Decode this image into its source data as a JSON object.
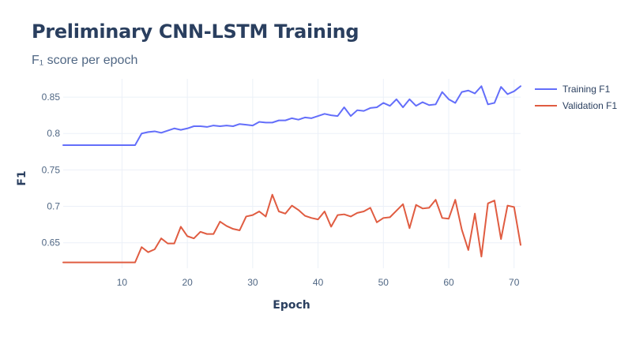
{
  "chart_data": {
    "type": "line",
    "title": "Preliminary CNN-LSTM Training",
    "subtitle": "F₁ score per epoch",
    "xlabel": "Epoch",
    "ylabel": "F1",
    "xlim": [
      1,
      71
    ],
    "ylim": [
      0.615,
      0.875
    ],
    "xticks": [
      10,
      20,
      30,
      40,
      50,
      60,
      70
    ],
    "yticks": [
      0.65,
      0.7,
      0.75,
      0.8,
      0.85
    ],
    "ytick_labels": [
      "0.65",
      "0.7",
      "0.75",
      "0.8",
      "0.85"
    ],
    "grid": true,
    "legend_position": "top-right",
    "x": [
      1,
      2,
      3,
      4,
      5,
      6,
      7,
      8,
      9,
      10,
      11,
      12,
      13,
      14,
      15,
      16,
      17,
      18,
      19,
      20,
      21,
      22,
      23,
      24,
      25,
      26,
      27,
      28,
      29,
      30,
      31,
      32,
      33,
      34,
      35,
      36,
      37,
      38,
      39,
      40,
      41,
      42,
      43,
      44,
      45,
      46,
      47,
      48,
      49,
      50,
      51,
      52,
      53,
      54,
      55,
      56,
      57,
      58,
      59,
      60,
      61,
      62,
      63,
      64,
      65,
      66,
      67,
      68,
      69,
      70,
      71
    ],
    "series": [
      {
        "name": "Training F1",
        "color": "#636efa",
        "values": [
          0.784,
          0.784,
          0.784,
          0.784,
          0.784,
          0.784,
          0.784,
          0.784,
          0.784,
          0.784,
          0.784,
          0.784,
          0.8,
          0.802,
          0.803,
          0.801,
          0.804,
          0.807,
          0.805,
          0.807,
          0.81,
          0.81,
          0.809,
          0.811,
          0.81,
          0.811,
          0.81,
          0.813,
          0.812,
          0.811,
          0.816,
          0.815,
          0.815,
          0.818,
          0.818,
          0.821,
          0.819,
          0.822,
          0.821,
          0.824,
          0.827,
          0.825,
          0.824,
          0.836,
          0.824,
          0.832,
          0.831,
          0.835,
          0.836,
          0.842,
          0.838,
          0.847,
          0.836,
          0.847,
          0.838,
          0.843,
          0.839,
          0.84,
          0.857,
          0.847,
          0.842,
          0.857,
          0.859,
          0.855,
          0.865,
          0.84,
          0.842,
          0.864,
          0.854,
          0.858,
          0.865
        ]
      },
      {
        "name": "Validation F1",
        "color": "#e05c41",
        "values": [
          0.623,
          0.623,
          0.623,
          0.623,
          0.623,
          0.623,
          0.623,
          0.623,
          0.623,
          0.623,
          0.623,
          0.623,
          0.644,
          0.637,
          0.641,
          0.656,
          0.649,
          0.649,
          0.672,
          0.659,
          0.656,
          0.665,
          0.662,
          0.662,
          0.679,
          0.673,
          0.669,
          0.667,
          0.686,
          0.688,
          0.693,
          0.686,
          0.716,
          0.693,
          0.69,
          0.701,
          0.695,
          0.687,
          0.684,
          0.682,
          0.693,
          0.672,
          0.688,
          0.689,
          0.686,
          0.691,
          0.693,
          0.698,
          0.678,
          0.684,
          0.685,
          0.694,
          0.703,
          0.67,
          0.702,
          0.697,
          0.698,
          0.709,
          0.684,
          0.683,
          0.709,
          0.668,
          0.64,
          0.69,
          0.631,
          0.704,
          0.708,
          0.655,
          0.701,
          0.699,
          0.647
        ]
      }
    ]
  }
}
